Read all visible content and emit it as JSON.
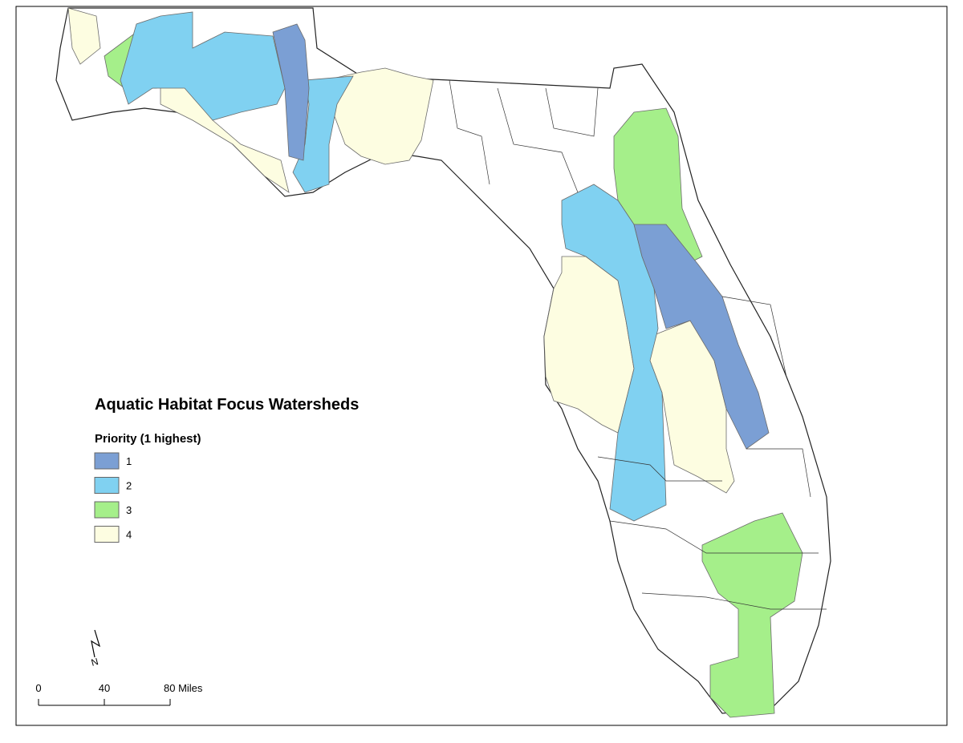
{
  "title": "Aquatic Habitat Focus Watersheds",
  "legend": {
    "title": "Priority (1 highest)",
    "items": [
      {
        "label": "1",
        "color": "#7b9fd4"
      },
      {
        "label": "2",
        "color": "#80d1f1"
      },
      {
        "label": "3",
        "color": "#a5ef8a"
      },
      {
        "label": "4",
        "color": "#fdfde1"
      }
    ]
  },
  "scale_bar": {
    "labels": [
      "0",
      "40",
      "80 Miles"
    ]
  },
  "north_arrow": {
    "label": "N"
  }
}
